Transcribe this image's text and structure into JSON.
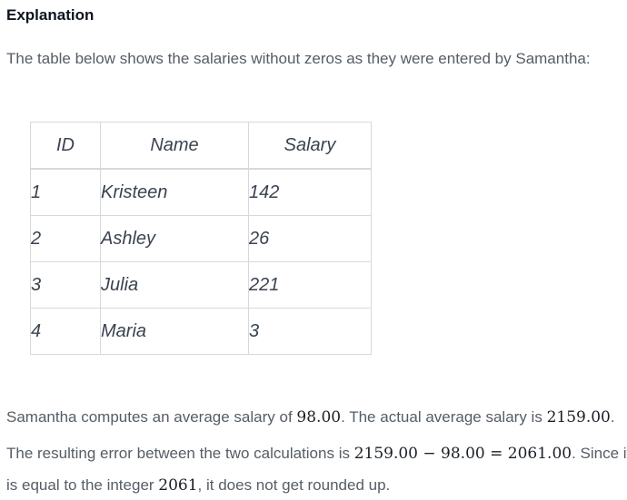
{
  "heading": "Explanation",
  "intro": "The table below shows the salaries without zeros as they were entered by Samantha:",
  "table": {
    "headers": [
      "ID",
      "Name",
      "Salary"
    ],
    "rows": [
      [
        "1",
        "Kristeen",
        "142"
      ],
      [
        "2",
        "Ashley",
        "26"
      ],
      [
        "3",
        "Julia",
        "221"
      ],
      [
        "4",
        "Maria",
        "3"
      ]
    ]
  },
  "para1": {
    "t1": "Samantha computes an average salary of ",
    "m1": "98.00",
    "t2": ". The actual average salary is ",
    "m2": "2159.00",
    "t3": "."
  },
  "para2": {
    "t1": "The resulting error between the two calculations is ",
    "m1": "2159.00 − 98.00 = 2061.00",
    "t2": ". Since it"
  },
  "para3": {
    "t1": "is equal to the integer ",
    "m1": "2061",
    "t2": ", it does not get rounded up."
  }
}
